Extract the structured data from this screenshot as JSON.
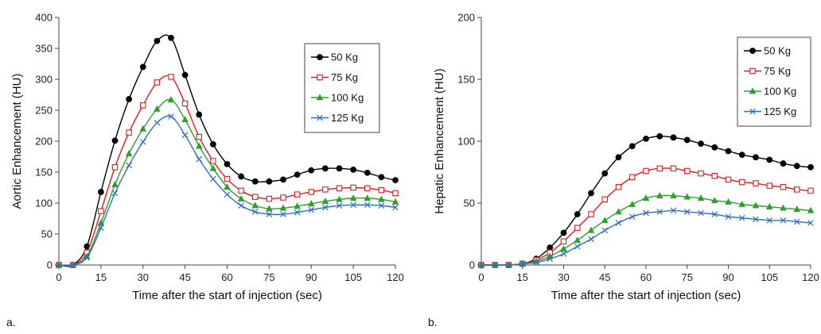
{
  "colors": {
    "series": [
      "#000000",
      "#e41a1c",
      "#2ca02c",
      "#2f6fbf"
    ],
    "axis": "#444444",
    "legend_border": "#444444"
  },
  "chart_data": [
    {
      "type": "line",
      "panel_label": "a.",
      "xlabel": "Time after the start of injection (sec)",
      "ylabel": "Aortic Enhancement (HU)",
      "xlim": [
        0,
        120
      ],
      "ylim": [
        0,
        400
      ],
      "xticks": [
        0,
        15,
        30,
        45,
        60,
        75,
        90,
        105,
        120
      ],
      "yticks": [
        0,
        50,
        100,
        150,
        200,
        250,
        300,
        350,
        400
      ],
      "grid": false,
      "legend_position": "top-right",
      "x": [
        0,
        5,
        10,
        15,
        20,
        25,
        30,
        35,
        40,
        45,
        50,
        55,
        60,
        65,
        70,
        75,
        80,
        85,
        90,
        95,
        100,
        105,
        110,
        115,
        120
      ],
      "series": [
        {
          "name": "50 Kg",
          "marker": "circle",
          "values": [
            0,
            0,
            30,
            118,
            201,
            268,
            320,
            362,
            367,
            307,
            243,
            195,
            163,
            143,
            135,
            135,
            138,
            146,
            153,
            156,
            156,
            154,
            149,
            142,
            137
          ]
        },
        {
          "name": "75 Kg",
          "marker": "square",
          "values": [
            0,
            0,
            20,
            87,
            158,
            214,
            258,
            295,
            304,
            261,
            207,
            168,
            139,
            120,
            110,
            107,
            109,
            114,
            118,
            122,
            124,
            125,
            124,
            121,
            116
          ]
        },
        {
          "name": "100 Kg",
          "marker": "triangle",
          "values": [
            0,
            0,
            14,
            68,
            130,
            180,
            220,
            252,
            267,
            235,
            192,
            156,
            126,
            107,
            96,
            91,
            92,
            95,
            99,
            103,
            106,
            108,
            108,
            106,
            102
          ]
        },
        {
          "name": "125 Kg",
          "marker": "x",
          "values": [
            0,
            0,
            12,
            60,
            116,
            161,
            199,
            230,
            240,
            210,
            171,
            139,
            114,
            96,
            86,
            82,
            82,
            85,
            89,
            93,
            96,
            97,
            97,
            96,
            93
          ]
        }
      ]
    },
    {
      "type": "line",
      "panel_label": "b.",
      "xlabel": "Time after the start of injection (sec)",
      "ylabel": "Hepatic Enhancement (HU)",
      "xlim": [
        0,
        120
      ],
      "ylim": [
        0,
        200
      ],
      "xticks": [
        0,
        15,
        30,
        45,
        60,
        75,
        90,
        105,
        120
      ],
      "yticks": [
        0,
        50,
        100,
        150,
        200
      ],
      "grid": false,
      "legend_position": "top-right",
      "x": [
        0,
        5,
        10,
        15,
        20,
        25,
        30,
        35,
        40,
        45,
        50,
        55,
        60,
        65,
        70,
        75,
        80,
        85,
        90,
        95,
        100,
        105,
        110,
        115,
        120
      ],
      "series": [
        {
          "name": "50 Kg",
          "marker": "circle",
          "values": [
            0,
            0,
            0,
            1,
            5,
            14,
            26,
            41,
            58,
            74,
            87,
            96,
            102,
            104,
            103,
            101,
            98,
            95,
            92,
            89,
            87,
            85,
            82,
            80,
            79
          ]
        },
        {
          "name": "75 Kg",
          "marker": "square",
          "values": [
            0,
            0,
            0,
            1,
            4,
            10,
            19,
            30,
            41,
            53,
            63,
            71,
            76,
            78,
            78,
            76,
            74,
            72,
            69,
            67,
            66,
            64,
            63,
            61,
            60
          ]
        },
        {
          "name": "100 Kg",
          "marker": "triangle",
          "values": [
            0,
            0,
            0,
            1,
            3,
            7,
            13,
            20,
            28,
            36,
            43,
            49,
            54,
            56,
            56,
            55,
            54,
            52,
            51,
            49,
            48,
            47,
            46,
            45,
            44
          ]
        },
        {
          "name": "125 Kg",
          "marker": "x",
          "values": [
            0,
            0,
            0,
            1,
            2,
            5,
            9,
            15,
            21,
            28,
            34,
            39,
            42,
            43,
            44,
            43,
            42,
            41,
            39,
            38,
            37,
            36,
            36,
            35,
            34
          ]
        }
      ]
    }
  ]
}
